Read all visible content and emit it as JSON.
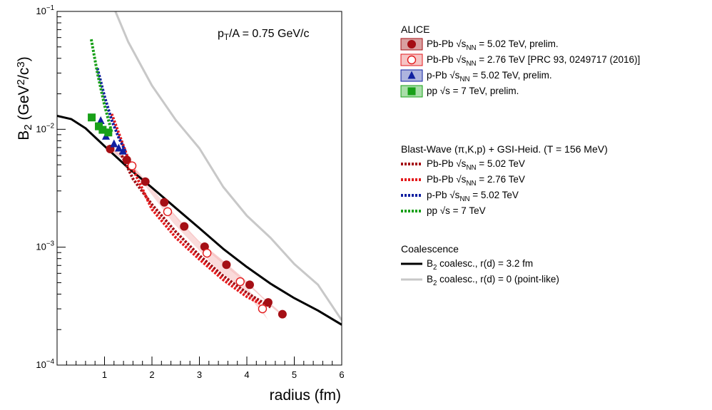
{
  "chart_data": {
    "type": "scatter",
    "title": "",
    "annotation": "p_T/A = 0.75 GeV/c",
    "xlabel": "radius (fm)",
    "ylabel": "B_2 (GeV^2/c^3)",
    "xlim": [
      0,
      6
    ],
    "ylim": [
      0.0001,
      0.1
    ],
    "yscale": "log",
    "x_ticks": [
      1,
      2,
      3,
      4,
      5,
      6
    ],
    "y_ticks": [
      {
        "value": 0.0001,
        "base": "10",
        "exp": "−4"
      },
      {
        "value": 0.001,
        "base": "10",
        "exp": "−3"
      },
      {
        "value": 0.01,
        "base": "10",
        "exp": "−2"
      },
      {
        "value": 0.1,
        "base": "10",
        "exp": "−1"
      }
    ],
    "grid": false,
    "legend_position": "right",
    "colors": {
      "pbpb502": "#a50f15",
      "pbpb276": "#e31a1c",
      "ppb": "#1020a0",
      "pp": "#18a018",
      "band_fill": "#f2a8a8",
      "band_fill_276": "#f7c2c2",
      "coal_3p2": "#000000",
      "coal_0": "#c8c8c8"
    },
    "series": [
      {
        "name": "Pb-Pb √s_NN = 5.02 TeV, prelim.",
        "kind": "data",
        "marker": "circle-filled",
        "color": "#a50f15",
        "x": [
          1.12,
          1.47,
          1.86,
          2.26,
          2.68,
          3.11,
          3.57,
          4.06,
          4.45,
          4.75
        ],
        "y": [
          0.0068,
          0.0055,
          0.0036,
          0.0024,
          0.0015,
          0.00101,
          0.00071,
          0.00048,
          0.00034,
          0.00027
        ],
        "band_low": [
          0.0061,
          0.0049,
          0.0032,
          0.0021,
          0.00132,
          0.00089,
          0.00062,
          0.00042,
          0.0003,
          0.00024
        ],
        "band_high": [
          0.0076,
          0.0061,
          0.004,
          0.0027,
          0.00168,
          0.00113,
          0.0008,
          0.00054,
          0.00038,
          0.0003
        ]
      },
      {
        "name": "Pb-Pb √s_NN = 2.76 TeV [PRC 93, 0249717 (2016)]",
        "kind": "data",
        "marker": "circle-open",
        "color": "#e31a1c",
        "x": [
          1.58,
          2.33,
          3.16,
          3.86,
          4.33
        ],
        "y": [
          0.0049,
          0.002,
          0.00089,
          0.00051,
          0.0003
        ],
        "band_low": [
          0.004,
          0.0016,
          0.00071,
          0.00041,
          0.00024
        ],
        "band_high": [
          0.0058,
          0.0025,
          0.00107,
          0.00061,
          0.00036
        ]
      },
      {
        "name": "p-Pb √s_NN = 5.02 TeV, prelim.",
        "kind": "data",
        "marker": "triangle",
        "color": "#1020a0",
        "x": [
          0.92,
          1.03,
          1.2,
          1.3,
          1.39
        ],
        "y": [
          0.0118,
          0.0087,
          0.0075,
          0.0069,
          0.0065
        ]
      },
      {
        "name": "pp √s = 7 TeV, prelim.",
        "kind": "data",
        "marker": "square",
        "color": "#18a018",
        "x": [
          0.73,
          0.88,
          0.96,
          1.08
        ],
        "y": [
          0.0126,
          0.0106,
          0.0099,
          0.0094
        ]
      },
      {
        "name": "Pb-Pb √s_NN = 5.02 TeV",
        "kind": "model",
        "color": "#a50f15",
        "x": [
          1.3,
          1.6,
          2.0,
          2.5,
          3.0,
          3.5,
          4.0,
          4.5
        ],
        "y": [
          0.0068,
          0.0038,
          0.0023,
          0.00135,
          0.00085,
          0.00057,
          0.00041,
          0.00031
        ]
      },
      {
        "name": "Pb-Pb √s_NN = 2.76 TeV",
        "kind": "model",
        "color": "#e31a1c",
        "x": [
          1.15,
          1.5,
          2.0,
          2.5,
          3.0,
          3.5,
          4.0,
          4.3
        ],
        "y": [
          0.0135,
          0.0056,
          0.0021,
          0.00121,
          0.00079,
          0.00053,
          0.00038,
          0.00033
        ]
      },
      {
        "name": "p-Pb √s_NN = 5.02 TeV",
        "kind": "model",
        "color": "#1020a0",
        "x": [
          0.85,
          1.0,
          1.15,
          1.3,
          1.45
        ],
        "y": [
          0.033,
          0.019,
          0.012,
          0.0085,
          0.0064
        ]
      },
      {
        "name": "pp √s = 7 TeV",
        "kind": "model",
        "color": "#18a018",
        "x": [
          0.72,
          0.85,
          1.0,
          1.15
        ],
        "y": [
          0.058,
          0.03,
          0.016,
          0.0095
        ]
      },
      {
        "name": "B_2 coalesc., r(d) = 3.2 fm",
        "kind": "curve",
        "color": "#000000",
        "x": [
          0,
          0.3,
          0.6,
          1.0,
          1.5,
          2.0,
          2.5,
          3.0,
          3.5,
          4.0,
          4.5,
          5.0,
          5.5,
          6.0
        ],
        "y": [
          0.013,
          0.0122,
          0.0102,
          0.0072,
          0.0047,
          0.0032,
          0.00215,
          0.00145,
          0.00097,
          0.00068,
          0.00049,
          0.00037,
          0.00029,
          0.00022
        ]
      },
      {
        "name": "B_2 coalesc., r(d) = 0 (point-like)",
        "kind": "curve",
        "color": "#c8c8c8",
        "x": [
          1.23,
          1.5,
          2.0,
          2.5,
          3.0,
          3.5,
          4.0,
          4.5,
          5.0,
          5.5,
          6.0
        ],
        "y": [
          0.1,
          0.055,
          0.0235,
          0.012,
          0.0069,
          0.00325,
          0.00185,
          0.0012,
          0.00072,
          0.00048,
          0.00024
        ]
      }
    ],
    "legend": {
      "groups": [
        {
          "title": "ALICE",
          "entries": [
            {
              "label": "Pb-Pb √s_NN = 5.02 TeV, prelim.",
              "style": "circle-filled",
              "color": "#a50f15"
            },
            {
              "label": "Pb-Pb √s_NN = 2.76 TeV [PRC 93, 0249717 (2016)]",
              "style": "circle-open",
              "color": "#e31a1c"
            },
            {
              "label": "p-Pb √s_NN = 5.02 TeV, prelim.",
              "style": "triangle",
              "color": "#1020a0"
            },
            {
              "label": "pp √s = 7 TeV, prelim.",
              "style": "square",
              "color": "#18a018"
            }
          ]
        },
        {
          "title": "Blast-Wave (π,K,p) + GSI-Heid. (T = 156 MeV)",
          "entries": [
            {
              "label": "Pb-Pb √s_NN = 5.02 TeV",
              "style": "dotted",
              "color": "#a50f15"
            },
            {
              "label": "Pb-Pb √s_NN = 2.76 TeV",
              "style": "dotted",
              "color": "#e31a1c"
            },
            {
              "label": "p-Pb √s_NN = 5.02 TeV",
              "style": "dotted",
              "color": "#1020a0"
            },
            {
              "label": "pp √s = 7 TeV",
              "style": "dotted",
              "color": "#18a018"
            }
          ]
        },
        {
          "title": "Coalescence",
          "entries": [
            {
              "label": "B_2 coalesc., r(d) = 3.2 fm",
              "style": "solid",
              "color": "#000000"
            },
            {
              "label": "B_2 coalesc., r(d) = 0 (point-like)",
              "style": "solid",
              "color": "#c8c8c8"
            }
          ]
        }
      ]
    }
  }
}
